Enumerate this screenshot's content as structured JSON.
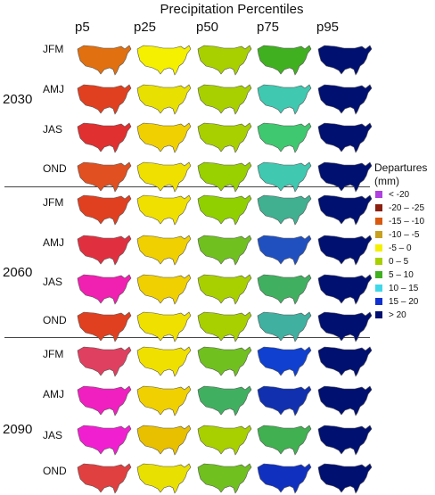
{
  "title": "Precipitation Percentiles",
  "columns": [
    "p5",
    "p25",
    "p50",
    "p75",
    "p95"
  ],
  "seasons": [
    "JFM",
    "AMJ",
    "JAS",
    "OND"
  ],
  "years": [
    "2030",
    "2060",
    "2090"
  ],
  "legend": {
    "title_line1": "Departures",
    "title_line2": "(mm)",
    "items": [
      {
        "label": "< -20",
        "color": "#b040e0"
      },
      {
        "label": "-20 – -25",
        "color": "#8b2010"
      },
      {
        "label": "-15 – -10",
        "color": "#d85a10"
      },
      {
        "label": "-10 – -5",
        "color": "#c8a020"
      },
      {
        "label": "-5 – 0",
        "color": "#f4f000"
      },
      {
        "label": "0 – 5",
        "color": "#a8d000"
      },
      {
        "label": "5 – 10",
        "color": "#40b020"
      },
      {
        "label": "10 – 15",
        "color": "#40d8e8"
      },
      {
        "label": "15 – 20",
        "color": "#1030d0"
      },
      {
        "label": "> 20",
        "color": "#001070"
      }
    ]
  },
  "grid": [
    [
      [
        "#e07010",
        "#f4f000",
        "#a8d000",
        "#40b020",
        "#001070"
      ],
      [
        "#e04020",
        "#e8e000",
        "#a8d000",
        "#40c8b0",
        "#001070"
      ],
      [
        "#e03030",
        "#f0d000",
        "#a8d000",
        "#40c870",
        "#001070"
      ],
      [
        "#e05020",
        "#f0e000",
        "#98d000",
        "#40c8b0",
        "#001070"
      ]
    ],
    [
      [
        "#e04020",
        "#f0e000",
        "#90d000",
        "#40b090",
        "#001070"
      ],
      [
        "#e03040",
        "#f0d000",
        "#70c020",
        "#2050c0",
        "#001070"
      ],
      [
        "#f020b0",
        "#f0d000",
        "#a8d000",
        "#40b060",
        "#001070"
      ],
      [
        "#e04020",
        "#f0e000",
        "#a8d000",
        "#40b0a0",
        "#001070"
      ]
    ],
    [
      [
        "#e04060",
        "#f0e000",
        "#70c020",
        "#1040d0",
        "#001070"
      ],
      [
        "#f020c0",
        "#f0d000",
        "#40b060",
        "#1030b0",
        "#001070"
      ],
      [
        "#f020d0",
        "#e8c000",
        "#a8d000",
        "#40b050",
        "#001070"
      ],
      [
        "#e04040",
        "#e8e000",
        "#70c020",
        "#1030c0",
        "#001070"
      ]
    ]
  ]
}
